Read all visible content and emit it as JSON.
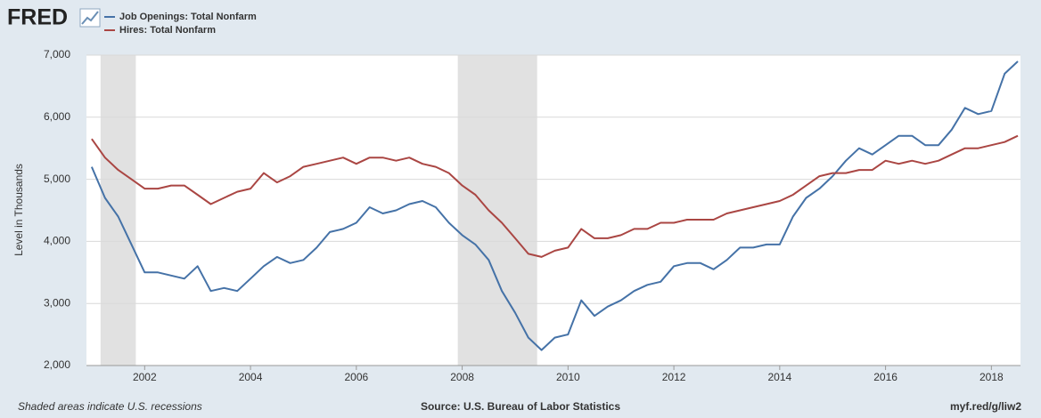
{
  "chart_data": {
    "type": "line",
    "brand": "FRED",
    "ylabel": "Level in Thousands",
    "note": "Shaded areas indicate U.S. recessions",
    "source": "Source: U.S. Bureau of Labor Statistics",
    "link": "myf.red/g/liw2",
    "x": [
      2001,
      2001.25,
      2001.5,
      2001.75,
      2002,
      2002.25,
      2002.5,
      2002.75,
      2003,
      2003.25,
      2003.5,
      2003.75,
      2004,
      2004.25,
      2004.5,
      2004.75,
      2005,
      2005.25,
      2005.5,
      2005.75,
      2006,
      2006.25,
      2006.5,
      2006.75,
      2007,
      2007.25,
      2007.5,
      2007.75,
      2008,
      2008.25,
      2008.5,
      2008.75,
      2009,
      2009.25,
      2009.5,
      2009.75,
      2010,
      2010.25,
      2010.5,
      2010.75,
      2011,
      2011.25,
      2011.5,
      2011.75,
      2012,
      2012.25,
      2012.5,
      2012.75,
      2013,
      2013.25,
      2013.5,
      2013.75,
      2014,
      2014.25,
      2014.5,
      2014.75,
      2015,
      2015.25,
      2015.5,
      2015.75,
      2016,
      2016.25,
      2016.5,
      2016.75,
      2017,
      2017.25,
      2017.5,
      2017.75,
      2018,
      2018.25,
      2018.5
    ],
    "series": [
      {
        "name": "Job Openings: Total Nonfarm",
        "color": "#4572a7",
        "values": [
          5200,
          4700,
          4400,
          3950,
          3500,
          3500,
          3450,
          3400,
          3600,
          3200,
          3250,
          3200,
          3400,
          3600,
          3750,
          3650,
          3700,
          3900,
          4150,
          4200,
          4300,
          4550,
          4450,
          4500,
          4600,
          4650,
          4550,
          4300,
          4100,
          3950,
          3700,
          3200,
          2850,
          2450,
          2250,
          2450,
          2500,
          3050,
          2800,
          2950,
          3050,
          3200,
          3300,
          3350,
          3600,
          3650,
          3650,
          3550,
          3700,
          3900,
          3900,
          3950,
          3950,
          4400,
          4700,
          4850,
          5050,
          5300,
          5500,
          5400,
          5550,
          5700,
          5700,
          5550,
          5550,
          5800,
          6150,
          6050,
          6100,
          6700,
          6900
        ]
      },
      {
        "name": "Hires: Total Nonfarm",
        "color": "#aa4643",
        "values": [
          5650,
          5350,
          5150,
          5000,
          4850,
          4850,
          4900,
          4900,
          4750,
          4600,
          4700,
          4800,
          4850,
          5100,
          4950,
          5050,
          5200,
          5250,
          5300,
          5350,
          5250,
          5350,
          5350,
          5300,
          5350,
          5250,
          5200,
          5100,
          4900,
          4750,
          4500,
          4300,
          4050,
          3800,
          3750,
          3850,
          3900,
          4200,
          4050,
          4050,
          4100,
          4200,
          4200,
          4300,
          4300,
          4350,
          4350,
          4350,
          4450,
          4500,
          4550,
          4600,
          4650,
          4750,
          4900,
          5050,
          5100,
          5100,
          5150,
          5150,
          5300,
          5250,
          5300,
          5250,
          5300,
          5400,
          5500,
          5500,
          5550,
          5600,
          5700
        ]
      }
    ],
    "recessions": [
      {
        "start": 2001.167,
        "end": 2001.833
      },
      {
        "start": 2007.917,
        "end": 2009.417
      }
    ],
    "recession_color": "#e1e1e1",
    "xlim": [
      2000.9,
      2018.55
    ],
    "xticks": [
      2002,
      2004,
      2006,
      2008,
      2010,
      2012,
      2014,
      2016,
      2018
    ],
    "ylim": [
      2000,
      7000
    ],
    "yticks": [
      {
        "value": 2000,
        "label": "2,000"
      },
      {
        "value": 3000,
        "label": "3,000"
      },
      {
        "value": 4000,
        "label": "4,000"
      },
      {
        "value": 5000,
        "label": "5,000"
      },
      {
        "value": 6000,
        "label": "6,000"
      },
      {
        "value": 7000,
        "label": "7,000"
      }
    ],
    "grid": true,
    "legend": "top-left"
  }
}
